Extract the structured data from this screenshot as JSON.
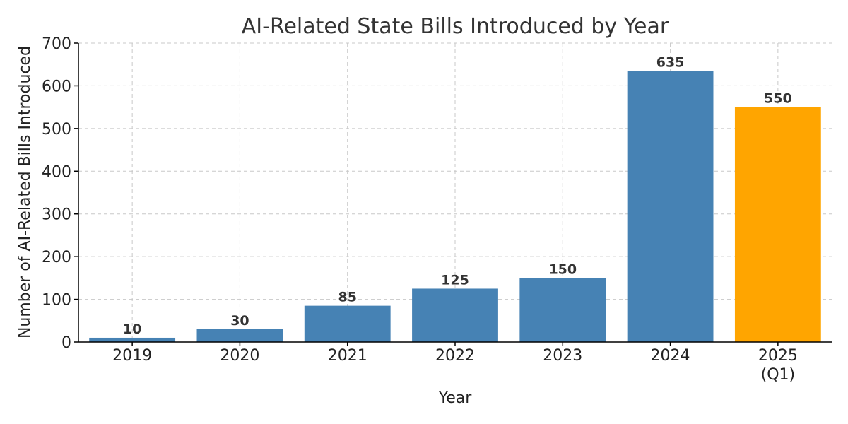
{
  "chart_data": {
    "type": "bar",
    "title": "AI-Related State Bills Introduced by Year",
    "xlabel": "Year",
    "ylabel": "Number of AI-Related Bills Introduced",
    "categories": [
      [
        "2019"
      ],
      [
        "2020"
      ],
      [
        "2021"
      ],
      [
        "2022"
      ],
      [
        "2023"
      ],
      [
        "2024"
      ],
      [
        "2025",
        "(Q1)"
      ]
    ],
    "values": [
      10,
      30,
      85,
      125,
      150,
      635,
      550
    ],
    "ylim": [
      0,
      700
    ],
    "yticks": [
      0,
      100,
      200,
      300,
      400,
      500,
      600,
      700
    ],
    "grid": true,
    "data_labels": true,
    "colors": [
      "#4682b4",
      "#4682b4",
      "#4682b4",
      "#4682b4",
      "#4682b4",
      "#4682b4",
      "#ffa500"
    ]
  }
}
